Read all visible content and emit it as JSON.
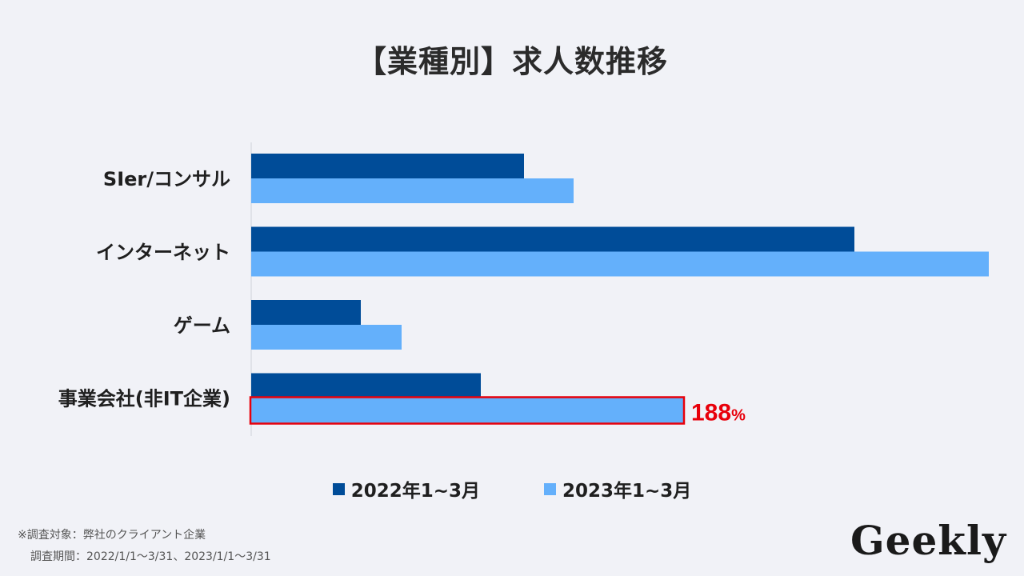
{
  "chart_data": {
    "type": "bar",
    "orientation": "horizontal",
    "title": "【業種別】求人数推移",
    "categories": [
      "SIer/コンサル",
      "インターネット",
      "ゲーム",
      "事業会社(非IT企業)"
    ],
    "series": [
      {
        "name": "2022年1~3月",
        "color": "#004c98",
        "values": [
          341,
          754,
          137,
          287
        ]
      },
      {
        "name": "2023年1~3月",
        "color": "#64b0fb",
        "values": [
          403,
          922,
          188,
          540
        ]
      }
    ],
    "xlim": [
      0,
      922
    ],
    "grid": false,
    "legend_position": "bottom",
    "annotation": {
      "category": "事業会社(非IT企業)",
      "series": "2023年1~3月",
      "value_text": "188",
      "unit_text": "%",
      "color": "#e8000b"
    }
  },
  "footnote": {
    "line1": "※調査対象：弊社のクライアント企業",
    "line2": "調査期間：2022/1/1〜3/31、2023/1/1〜3/31"
  },
  "brand": "Geekly"
}
